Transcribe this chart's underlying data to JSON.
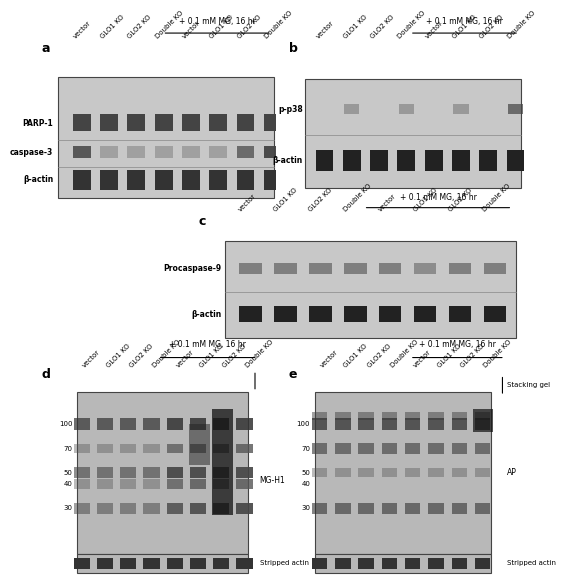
{
  "title_mg": "+ 0.1 mM MG, 16 hr",
  "labels_a": [
    "PARP-1",
    "caspase-3",
    "β-actin"
  ],
  "labels_b": [
    "p-p38",
    "β-actin"
  ],
  "labels_c": [
    "Procaspase-9",
    "β-actin"
  ],
  "labels_d_right": "MG-H1",
  "labels_e_right1": "Stacking gel",
  "labels_e_right2": "AP",
  "stripped_actin": "Stripped actin",
  "sample_labels": [
    "vector",
    "GLO1 KO",
    "GLO2 KO",
    "Double KO",
    "vector",
    "GLO1 KO",
    "GLO2 KO",
    "Double KO"
  ],
  "mw_labels": [
    "100",
    "70",
    "50",
    "40",
    "30"
  ],
  "panel_bg_light": "#c8c8c8",
  "panel_bg_dark": "#b8b8b8"
}
